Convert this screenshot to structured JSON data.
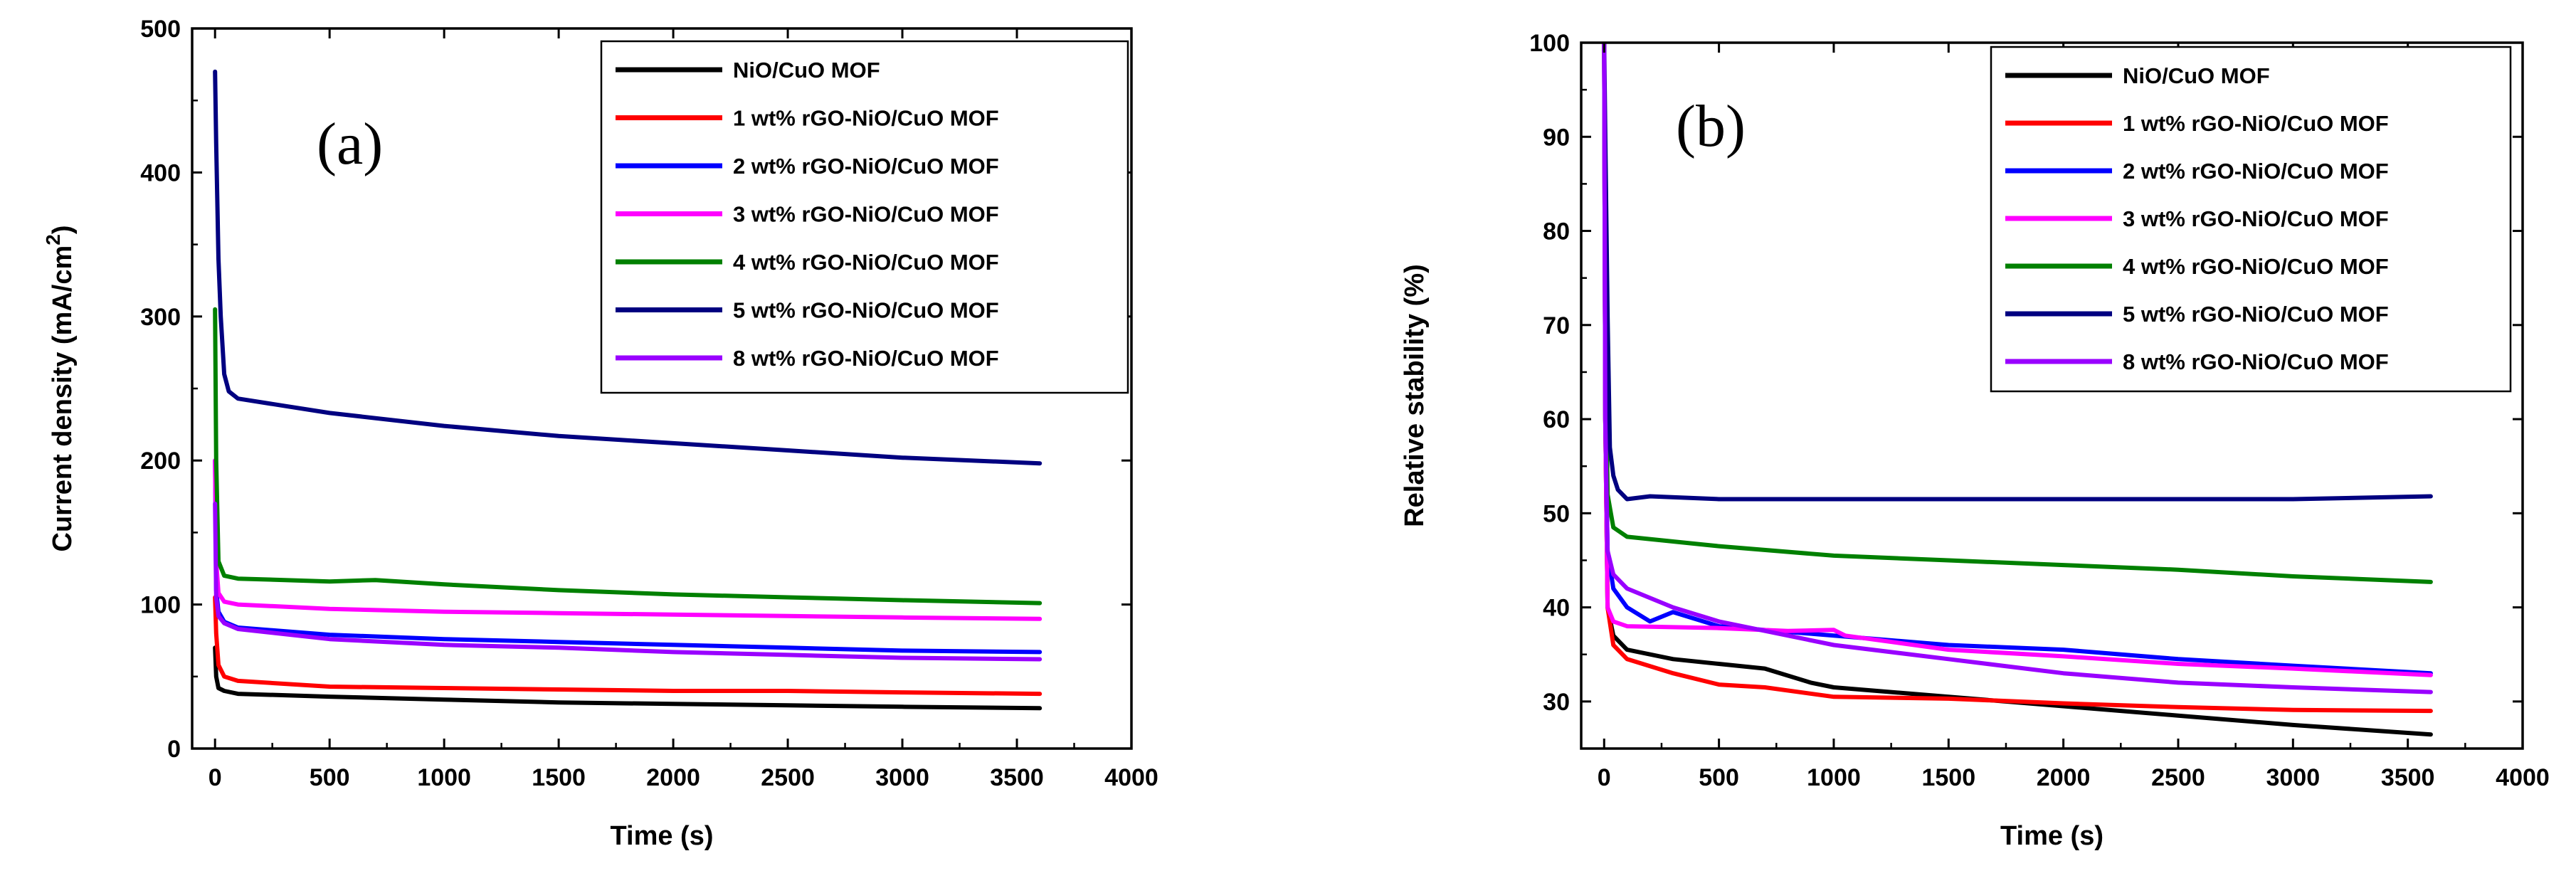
{
  "chart_data": [
    {
      "type": "line",
      "panel_label": "(a)",
      "xlabel": "Time (s)",
      "ylabel": "Current density (mA/cm",
      "ylabel_sup": "2",
      "ylabel_close": ")",
      "xlim": [
        -100,
        4000
      ],
      "ylim": [
        0,
        500
      ],
      "xticks": [
        0,
        500,
        1000,
        1500,
        2000,
        2500,
        3000,
        3500,
        4000
      ],
      "yticks": [
        0,
        100,
        200,
        300,
        400,
        500
      ],
      "legend_position": "top-right",
      "series": [
        {
          "name": "NiO/CuO MOF",
          "color": "#000000",
          "x": [
            0,
            5,
            15,
            40,
            100,
            500,
            1000,
            1500,
            2000,
            2500,
            3000,
            3600
          ],
          "y": [
            70,
            50,
            42,
            40,
            38,
            36,
            34,
            32,
            31,
            30,
            29,
            28
          ]
        },
        {
          "name": "1 wt% rGO-NiO/CuO MOF",
          "color": "#ff0000",
          "x": [
            0,
            5,
            15,
            40,
            100,
            500,
            1000,
            1500,
            2000,
            2500,
            3000,
            3600
          ],
          "y": [
            105,
            80,
            58,
            50,
            47,
            43,
            42,
            41,
            40,
            40,
            39,
            38
          ]
        },
        {
          "name": "2 wt% rGO-NiO/CuO MOF",
          "color": "#0000ff",
          "x": [
            0,
            5,
            15,
            40,
            100,
            500,
            1000,
            1500,
            2000,
            2500,
            3000,
            3600
          ],
          "y": [
            200,
            110,
            95,
            88,
            84,
            79,
            76,
            74,
            72,
            70,
            68,
            67
          ]
        },
        {
          "name": "3 wt% rGO-NiO/CuO MOF",
          "color": "#ff00ff",
          "x": [
            0,
            5,
            15,
            40,
            100,
            500,
            1000,
            1500,
            2000,
            2500,
            3000,
            3600
          ],
          "y": [
            200,
            130,
            108,
            102,
            100,
            97,
            95,
            94,
            93,
            92,
            91,
            90
          ]
        },
        {
          "name": "4 wt% rGO-NiO/CuO MOF",
          "color": "#008000",
          "x": [
            0,
            5,
            15,
            40,
            100,
            500,
            700,
            1000,
            1500,
            2000,
            2500,
            3000,
            3600
          ],
          "y": [
            305,
            200,
            130,
            120,
            118,
            116,
            117,
            114,
            110,
            107,
            105,
            103,
            101
          ]
        },
        {
          "name": "5 wt% rGO-NiO/CuO MOF",
          "color": "#000080",
          "x": [
            0,
            5,
            15,
            25,
            40,
            60,
            100,
            300,
            500,
            1000,
            1500,
            2000,
            2500,
            3000,
            3600
          ],
          "y": [
            470,
            420,
            340,
            300,
            260,
            248,
            243,
            238,
            233,
            224,
            217,
            212,
            207,
            202,
            198
          ]
        },
        {
          "name": "8 wt% rGO-NiO/CuO MOF",
          "color": "#9900ff",
          "x": [
            0,
            5,
            15,
            40,
            100,
            500,
            1000,
            1500,
            2000,
            2500,
            3000,
            3600
          ],
          "y": [
            170,
            105,
            92,
            87,
            83,
            76,
            72,
            70,
            67,
            65,
            63,
            62
          ]
        }
      ]
    },
    {
      "type": "line",
      "panel_label": "(b)",
      "xlabel": "Time (s)",
      "ylabel": "Relative stability (%)",
      "xlim": [
        -100,
        4000
      ],
      "ylim": [
        25,
        100
      ],
      "xticks": [
        0,
        500,
        1000,
        1500,
        2000,
        2500,
        3000,
        3500,
        4000
      ],
      "yticks": [
        30,
        40,
        50,
        60,
        70,
        80,
        90,
        100
      ],
      "legend_position": "top-right",
      "series": [
        {
          "name": "NiO/CuO MOF",
          "color": "#000000",
          "x": [
            0,
            5,
            15,
            40,
            100,
            300,
            500,
            700,
            900,
            1000,
            1500,
            2000,
            2500,
            3000,
            3600
          ],
          "y": [
            100,
            60,
            40,
            37,
            35.5,
            34.5,
            34,
            33.5,
            32,
            31.5,
            30.5,
            29.5,
            28.5,
            27.5,
            26.5
          ]
        },
        {
          "name": "1 wt% rGO-NiO/CuO MOF",
          "color": "#ff0000",
          "x": [
            0,
            5,
            15,
            40,
            100,
            300,
            500,
            700,
            1000,
            1500,
            2000,
            2500,
            3000,
            3600
          ],
          "y": [
            100,
            60,
            40,
            36,
            34.5,
            33,
            31.8,
            31.5,
            30.5,
            30.3,
            29.8,
            29.4,
            29.1,
            29
          ]
        },
        {
          "name": "2 wt% rGO-NiO/CuO MOF",
          "color": "#0000ff",
          "x": [
            0,
            5,
            15,
            40,
            100,
            200,
            300,
            500,
            1000,
            1500,
            2000,
            2500,
            3000,
            3600
          ],
          "y": [
            100,
            60,
            46,
            42,
            40,
            38.5,
            39.5,
            38,
            37,
            36,
            35.5,
            34.5,
            33.8,
            33
          ]
        },
        {
          "name": "3 wt% rGO-NiO/CuO MOF",
          "color": "#ff00ff",
          "x": [
            0,
            5,
            15,
            40,
            100,
            500,
            800,
            1000,
            1050,
            1500,
            2000,
            2500,
            3000,
            3600
          ],
          "y": [
            100,
            60,
            40,
            38.5,
            38,
            37.8,
            37.5,
            37.6,
            37,
            35.5,
            34.8,
            34,
            33.5,
            32.8
          ]
        },
        {
          "name": "4 wt% rGO-NiO/CuO MOF",
          "color": "#008000",
          "x": [
            0,
            5,
            15,
            40,
            100,
            500,
            1000,
            1500,
            2000,
            2500,
            3000,
            3600
          ],
          "y": [
            100,
            70,
            52,
            48.5,
            47.5,
            46.5,
            45.5,
            45,
            44.5,
            44,
            43.3,
            42.7
          ]
        },
        {
          "name": "5 wt% rGO-NiO/CuO MOF",
          "color": "#000080",
          "x": [
            0,
            5,
            15,
            25,
            40,
            60,
            100,
            200,
            500,
            1000,
            1500,
            2000,
            2500,
            3000,
            3600
          ],
          "y": [
            100,
            90,
            71,
            57,
            54,
            52.5,
            51.5,
            51.8,
            51.5,
            51.5,
            51.5,
            51.5,
            51.5,
            51.5,
            51.8
          ]
        },
        {
          "name": "8 wt% rGO-NiO/CuO MOF",
          "color": "#9900ff",
          "x": [
            0,
            5,
            15,
            40,
            100,
            300,
            500,
            1000,
            1500,
            2000,
            2500,
            3000,
            3600
          ],
          "y": [
            100,
            60,
            46,
            43.5,
            42,
            40,
            38.5,
            36,
            34.5,
            33,
            32,
            31.5,
            31
          ]
        }
      ]
    }
  ]
}
